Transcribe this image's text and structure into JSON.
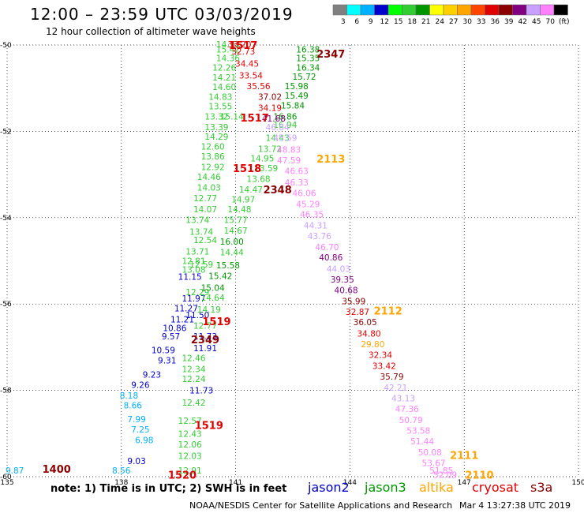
{
  "header": {
    "title": "12:00 – 23:59 UTC 03/03/2019",
    "subtitle": "12 hour collection of altimeter wave heights"
  },
  "color_scale": {
    "labels": [
      "3",
      "6",
      "9",
      "12",
      "15",
      "18",
      "21",
      "24",
      "27",
      "30",
      "33",
      "36",
      "39",
      "42",
      "45",
      "70",
      "(ft)"
    ],
    "colors": [
      "#808080",
      "#00ffff",
      "#00b0ff",
      "#0000cd",
      "#00ff00",
      "#32cd32",
      "#009600",
      "#ffff00",
      "#ffd000",
      "#ffa500",
      "#ff4500",
      "#e00000",
      "#8b0000",
      "#800080",
      "#c8a0ff",
      "#ff80ff",
      "#000000"
    ]
  },
  "footer": {
    "note": "note:  1) Time is in UTC;  2) SWH is in feet",
    "credit": "NOAA/NESDIS Center for Satellite Applications and Research",
    "timestamp": "Mar  4 13:27:38 UTC 2019",
    "missions": [
      {
        "name": "jason2",
        "color": "#0000cd"
      },
      {
        "name": "jason3",
        "color": "#009600"
      },
      {
        "name": "altika",
        "color": "#ffa500"
      },
      {
        "name": "cryosat",
        "color": "#e00000"
      },
      {
        "name": "s3a",
        "color": "#8b0000"
      }
    ]
  },
  "chart_data": {
    "type": "scatter",
    "title": "12:00 – 23:59 UTC 03/03/2019",
    "xlim": [
      135,
      150
    ],
    "ylim": [
      -60,
      -50
    ],
    "x_ticks": [
      135,
      138,
      141,
      144,
      147,
      150
    ],
    "y_ticks": [
      -50,
      -52,
      -54,
      -56,
      -58,
      -60
    ],
    "x_tick_labels": [
      "135",
      "138",
      "141",
      "144",
      "147",
      "150"
    ],
    "y_tick_labels": [
      "-50",
      "-52",
      "-54",
      "-56",
      "-58",
      "-60"
    ],
    "grid": true,
    "labels": [
      {
        "x": 135.2,
        "y": -59.85,
        "v": "9.87",
        "c": "#00b0ff"
      },
      {
        "x": 138.0,
        "y": -59.85,
        "v": "8.56",
        "c": "#00b0ff"
      },
      {
        "x": 138.4,
        "y": -59.63,
        "v": "9.03",
        "c": "#0000cd"
      },
      {
        "x": 138.6,
        "y": -59.15,
        "v": "6.98",
        "c": "#00b0ff"
      },
      {
        "x": 138.5,
        "y": -58.9,
        "v": "7.25",
        "c": "#00b0ff"
      },
      {
        "x": 138.4,
        "y": -58.67,
        "v": "7.99",
        "c": "#00b0ff"
      },
      {
        "x": 138.3,
        "y": -58.35,
        "v": "8.66",
        "c": "#00b0ff"
      },
      {
        "x": 138.2,
        "y": -58.12,
        "v": "8.18",
        "c": "#00b0ff"
      },
      {
        "x": 138.5,
        "y": -57.87,
        "v": "9.26",
        "c": "#0000cd"
      },
      {
        "x": 138.8,
        "y": -57.63,
        "v": "9.23",
        "c": "#0000cd"
      },
      {
        "x": 139.2,
        "y": -57.3,
        "v": "9.31",
        "c": "#0000cd"
      },
      {
        "x": 139.1,
        "y": -57.07,
        "v": "10.59",
        "c": "#0000cd"
      },
      {
        "x": 139.3,
        "y": -56.75,
        "v": "9.57",
        "c": "#0000cd"
      },
      {
        "x": 139.4,
        "y": -56.55,
        "v": "10.86",
        "c": "#0000cd"
      },
      {
        "x": 139.6,
        "y": -56.35,
        "v": "11.21",
        "c": "#0000cd"
      },
      {
        "x": 139.7,
        "y": -56.1,
        "v": "11.27",
        "c": "#0000cd"
      },
      {
        "x": 139.9,
        "y": -55.87,
        "v": "11.97",
        "c": "#0000cd"
      },
      {
        "x": 139.8,
        "y": -55.37,
        "v": "11.15",
        "c": "#0000cd"
      },
      {
        "x": 140.2,
        "y": -56.75,
        "v": "11.73",
        "c": "#0000cd"
      },
      {
        "x": 140.2,
        "y": -57.02,
        "v": "11.91",
        "c": "#0000cd"
      },
      {
        "x": 139.9,
        "y": -57.25,
        "v": "12.46",
        "c": "#32cd32"
      },
      {
        "x": 139.9,
        "y": -57.5,
        "v": "12.34",
        "c": "#32cd32"
      },
      {
        "x": 139.9,
        "y": -57.73,
        "v": "12.24",
        "c": "#32cd32"
      },
      {
        "x": 140.1,
        "y": -58.0,
        "v": "11.73",
        "c": "#0000cd"
      },
      {
        "x": 139.9,
        "y": -58.28,
        "v": "12.42",
        "c": "#32cd32"
      },
      {
        "x": 139.8,
        "y": -58.7,
        "v": "12.57",
        "c": "#32cd32"
      },
      {
        "x": 139.8,
        "y": -59.0,
        "v": "12.43",
        "c": "#32cd32"
      },
      {
        "x": 139.8,
        "y": -59.25,
        "v": "12.06",
        "c": "#32cd32"
      },
      {
        "x": 139.8,
        "y": -59.52,
        "v": "12.03",
        "c": "#32cd32"
      },
      {
        "x": 139.8,
        "y": -59.85,
        "v": "12.91",
        "c": "#32cd32"
      },
      {
        "x": 140.2,
        "y": -56.5,
        "v": "12.77",
        "c": "#32cd32"
      },
      {
        "x": 140.0,
        "y": -56.25,
        "v": "11.50",
        "c": "#0000cd"
      },
      {
        "x": 140.0,
        "y": -55.72,
        "v": "12.29",
        "c": "#32cd32"
      },
      {
        "x": 139.9,
        "y": -55.2,
        "v": "13.08",
        "c": "#32cd32"
      },
      {
        "x": 139.9,
        "y": -55.0,
        "v": "12.81",
        "c": "#32cd32"
      },
      {
        "x": 140.1,
        "y": -55.08,
        "v": "12.59",
        "c": "#32cd32"
      },
      {
        "x": 140.0,
        "y": -54.78,
        "v": "13.71",
        "c": "#32cd32"
      },
      {
        "x": 140.2,
        "y": -54.52,
        "v": "12.54",
        "c": "#32cd32"
      },
      {
        "x": 140.1,
        "y": -54.32,
        "v": "13.74",
        "c": "#32cd32"
      },
      {
        "x": 140.0,
        "y": -54.05,
        "v": "13.74",
        "c": "#32cd32"
      },
      {
        "x": 140.2,
        "y": -53.8,
        "v": "14.07",
        "c": "#32cd32"
      },
      {
        "x": 140.2,
        "y": -53.55,
        "v": "12.77",
        "c": "#32cd32"
      },
      {
        "x": 140.3,
        "y": -53.3,
        "v": "14.03",
        "c": "#32cd32"
      },
      {
        "x": 140.3,
        "y": -53.05,
        "v": "14.46",
        "c": "#32cd32"
      },
      {
        "x": 140.4,
        "y": -52.82,
        "v": "12.92",
        "c": "#32cd32"
      },
      {
        "x": 140.4,
        "y": -52.58,
        "v": "13.86",
        "c": "#32cd32"
      },
      {
        "x": 140.4,
        "y": -52.35,
        "v": "12.60",
        "c": "#32cd32"
      },
      {
        "x": 140.5,
        "y": -52.12,
        "v": "14.29",
        "c": "#32cd32"
      },
      {
        "x": 140.5,
        "y": -51.9,
        "v": "13.39",
        "c": "#32cd32"
      },
      {
        "x": 140.5,
        "y": -51.65,
        "v": "13.32",
        "c": "#32cd32"
      },
      {
        "x": 140.6,
        "y": -51.42,
        "v": "13.55",
        "c": "#32cd32"
      },
      {
        "x": 140.6,
        "y": -51.2,
        "v": "14.83",
        "c": "#32cd32"
      },
      {
        "x": 140.7,
        "y": -50.97,
        "v": "14.60",
        "c": "#32cd32"
      },
      {
        "x": 140.7,
        "y": -50.75,
        "v": "14.21",
        "c": "#32cd32"
      },
      {
        "x": 140.7,
        "y": -50.52,
        "v": "12.26",
        "c": "#32cd32"
      },
      {
        "x": 140.8,
        "y": -50.3,
        "v": "14.36",
        "c": "#32cd32"
      },
      {
        "x": 140.8,
        "y": -50.1,
        "v": "15.42",
        "c": "#32cd32"
      },
      {
        "x": 140.8,
        "y": -49.98,
        "v": "14.33",
        "c": "#32cd32"
      },
      {
        "x": 140.9,
        "y": -51.65,
        "v": "15.14",
        "c": "#32cd32"
      },
      {
        "x": 140.9,
        "y": -54.55,
        "v": "16.00",
        "c": "#009600"
      },
      {
        "x": 140.9,
        "y": -54.8,
        "v": "14.44",
        "c": "#32cd32"
      },
      {
        "x": 141.0,
        "y": -54.3,
        "v": "14.67",
        "c": "#32cd32"
      },
      {
        "x": 141.0,
        "y": -54.05,
        "v": "15.77",
        "c": "#32cd32"
      },
      {
        "x": 140.8,
        "y": -55.1,
        "v": "15.58",
        "c": "#009600"
      },
      {
        "x": 140.6,
        "y": -55.35,
        "v": "15.42",
        "c": "#009600"
      },
      {
        "x": 140.4,
        "y": -55.62,
        "v": "15.04",
        "c": "#009600"
      },
      {
        "x": 140.4,
        "y": -55.85,
        "v": "14.64",
        "c": "#32cd32"
      },
      {
        "x": 140.3,
        "y": -56.12,
        "v": "14.19",
        "c": "#32cd32"
      },
      {
        "x": 141.1,
        "y": -53.8,
        "v": "14.48",
        "c": "#32cd32"
      },
      {
        "x": 141.2,
        "y": -53.57,
        "v": "14.97",
        "c": "#32cd32"
      },
      {
        "x": 141.4,
        "y": -53.35,
        "v": "14.47",
        "c": "#32cd32"
      },
      {
        "x": 141.6,
        "y": -53.1,
        "v": "13.68",
        "c": "#32cd32"
      },
      {
        "x": 141.8,
        "y": -52.85,
        "v": "13.59",
        "c": "#32cd32"
      },
      {
        "x": 141.7,
        "y": -52.62,
        "v": "14.95",
        "c": "#32cd32"
      },
      {
        "x": 141.9,
        "y": -52.4,
        "v": "13.72",
        "c": "#32cd32"
      },
      {
        "x": 142.1,
        "y": -52.15,
        "v": "14.43",
        "c": "#32cd32"
      },
      {
        "x": 142.3,
        "y": -51.85,
        "v": "16.94",
        "c": "#32cd32"
      },
      {
        "x": 142.3,
        "y": -51.65,
        "v": "16.86",
        "c": "#009600"
      },
      {
        "x": 142.5,
        "y": -51.4,
        "v": "15.84",
        "c": "#009600"
      },
      {
        "x": 142.6,
        "y": -51.17,
        "v": "15.49",
        "c": "#009600"
      },
      {
        "x": 142.6,
        "y": -50.95,
        "v": "15.98",
        "c": "#009600"
      },
      {
        "x": 142.8,
        "y": -50.73,
        "v": "15.72",
        "c": "#009600"
      },
      {
        "x": 142.9,
        "y": -50.52,
        "v": "16.34",
        "c": "#009600"
      },
      {
        "x": 142.9,
        "y": -50.3,
        "v": "15.35",
        "c": "#009600"
      },
      {
        "x": 142.9,
        "y": -50.1,
        "v": "16.38",
        "c": "#009600"
      },
      {
        "x": 141.1,
        "y": -49.98,
        "v": "33.20",
        "c": "#e00000"
      },
      {
        "x": 141.2,
        "y": -50.15,
        "v": "32.73",
        "c": "#e00000"
      },
      {
        "x": 141.3,
        "y": -50.43,
        "v": "34.45",
        "c": "#e00000"
      },
      {
        "x": 141.4,
        "y": -50.7,
        "v": "33.54",
        "c": "#e00000"
      },
      {
        "x": 141.6,
        "y": -50.95,
        "v": "35.56",
        "c": "#e00000"
      },
      {
        "x": 141.9,
        "y": -51.2,
        "v": "37.02",
        "c": "#8b0000"
      },
      {
        "x": 141.9,
        "y": -51.45,
        "v": "34.19",
        "c": "#e00000"
      },
      {
        "x": 142.0,
        "y": -51.7,
        "v": "41.68",
        "c": "#800080"
      },
      {
        "x": 142.1,
        "y": -51.9,
        "v": "46.84",
        "c": "#c8a0ff"
      },
      {
        "x": 142.3,
        "y": -52.15,
        "v": "45.59",
        "c": "#c8a0ff"
      },
      {
        "x": 142.4,
        "y": -52.42,
        "v": "48.83",
        "c": "#ff80ff"
      },
      {
        "x": 142.4,
        "y": -52.67,
        "v": "47.59",
        "c": "#ff80ff"
      },
      {
        "x": 142.6,
        "y": -52.92,
        "v": "46.63",
        "c": "#ff80ff"
      },
      {
        "x": 142.6,
        "y": -53.18,
        "v": "46.33",
        "c": "#ff80ff"
      },
      {
        "x": 142.8,
        "y": -53.43,
        "v": "46.06",
        "c": "#ff80ff"
      },
      {
        "x": 142.9,
        "y": -53.68,
        "v": "45.29",
        "c": "#ff80ff"
      },
      {
        "x": 143.0,
        "y": -53.92,
        "v": "46.35",
        "c": "#ff80ff"
      },
      {
        "x": 143.1,
        "y": -54.18,
        "v": "44.31",
        "c": "#c8a0ff"
      },
      {
        "x": 143.2,
        "y": -54.42,
        "v": "43.76",
        "c": "#c8a0ff"
      },
      {
        "x": 143.4,
        "y": -54.68,
        "v": "46.70",
        "c": "#ff80ff"
      },
      {
        "x": 143.5,
        "y": -54.92,
        "v": "40.86",
        "c": "#800080"
      },
      {
        "x": 143.7,
        "y": -55.18,
        "v": "44.03",
        "c": "#c8a0ff"
      },
      {
        "x": 143.8,
        "y": -55.43,
        "v": "39.35",
        "c": "#800080"
      },
      {
        "x": 143.9,
        "y": -55.68,
        "v": "40.68",
        "c": "#800080"
      },
      {
        "x": 144.1,
        "y": -55.93,
        "v": "35.99",
        "c": "#8b0000"
      },
      {
        "x": 144.2,
        "y": -56.18,
        "v": "32.87",
        "c": "#e00000"
      },
      {
        "x": 144.4,
        "y": -56.42,
        "v": "36.05",
        "c": "#8b0000"
      },
      {
        "x": 144.5,
        "y": -56.68,
        "v": "34.80",
        "c": "#e00000"
      },
      {
        "x": 144.6,
        "y": -56.93,
        "v": "29.80",
        "c": "#ffa500"
      },
      {
        "x": 144.8,
        "y": -57.18,
        "v": "32.34",
        "c": "#e00000"
      },
      {
        "x": 144.9,
        "y": -57.43,
        "v": "33.42",
        "c": "#e00000"
      },
      {
        "x": 145.1,
        "y": -57.68,
        "v": "35.79",
        "c": "#8b0000"
      },
      {
        "x": 145.2,
        "y": -57.93,
        "v": "42.21",
        "c": "#c8a0ff"
      },
      {
        "x": 145.4,
        "y": -58.18,
        "v": "43.13",
        "c": "#c8a0ff"
      },
      {
        "x": 145.5,
        "y": -58.43,
        "v": "47.36",
        "c": "#ff80ff"
      },
      {
        "x": 145.6,
        "y": -58.68,
        "v": "50.79",
        "c": "#ff80ff"
      },
      {
        "x": 145.8,
        "y": -58.93,
        "v": "53.58",
        "c": "#ff80ff"
      },
      {
        "x": 145.9,
        "y": -59.18,
        "v": "51.44",
        "c": "#ff80ff"
      },
      {
        "x": 146.1,
        "y": -59.43,
        "v": "50.08",
        "c": "#ff80ff"
      },
      {
        "x": 146.2,
        "y": -59.68,
        "v": "53.67",
        "c": "#ff80ff"
      },
      {
        "x": 146.4,
        "y": -59.85,
        "v": "51.85",
        "c": "#ff80ff"
      },
      {
        "x": 146.5,
        "y": -59.95,
        "v": "52.09",
        "c": "#ff80ff"
      }
    ],
    "time_labels": [
      {
        "x": 136.3,
        "y": -59.82,
        "v": "1400",
        "c": "#8b0000"
      },
      {
        "x": 141.2,
        "y": -50.0,
        "v": "1517",
        "c": "#e00000"
      },
      {
        "x": 141.5,
        "y": -51.68,
        "v": "1517",
        "c": "#e00000"
      },
      {
        "x": 141.3,
        "y": -52.85,
        "v": "1518",
        "c": "#e00000"
      },
      {
        "x": 140.5,
        "y": -56.4,
        "v": "1519",
        "c": "#e00000"
      },
      {
        "x": 140.3,
        "y": -58.8,
        "v": "1519",
        "c": "#e00000"
      },
      {
        "x": 139.6,
        "y": -59.95,
        "v": "1520",
        "c": "#e00000"
      },
      {
        "x": 143.5,
        "y": -50.2,
        "v": "2347",
        "c": "#8b0000"
      },
      {
        "x": 142.1,
        "y": -53.35,
        "v": "2348",
        "c": "#8b0000"
      },
      {
        "x": 140.2,
        "y": -56.82,
        "v": "2349",
        "c": "#8b0000"
      },
      {
        "x": 143.5,
        "y": -52.63,
        "v": "2113",
        "c": "#ffa500"
      },
      {
        "x": 145.0,
        "y": -56.15,
        "v": "2112",
        "c": "#ffa500"
      },
      {
        "x": 147.0,
        "y": -59.5,
        "v": "2111",
        "c": "#ffa500"
      },
      {
        "x": 147.4,
        "y": -59.95,
        "v": "2110",
        "c": "#ffa500"
      }
    ]
  }
}
